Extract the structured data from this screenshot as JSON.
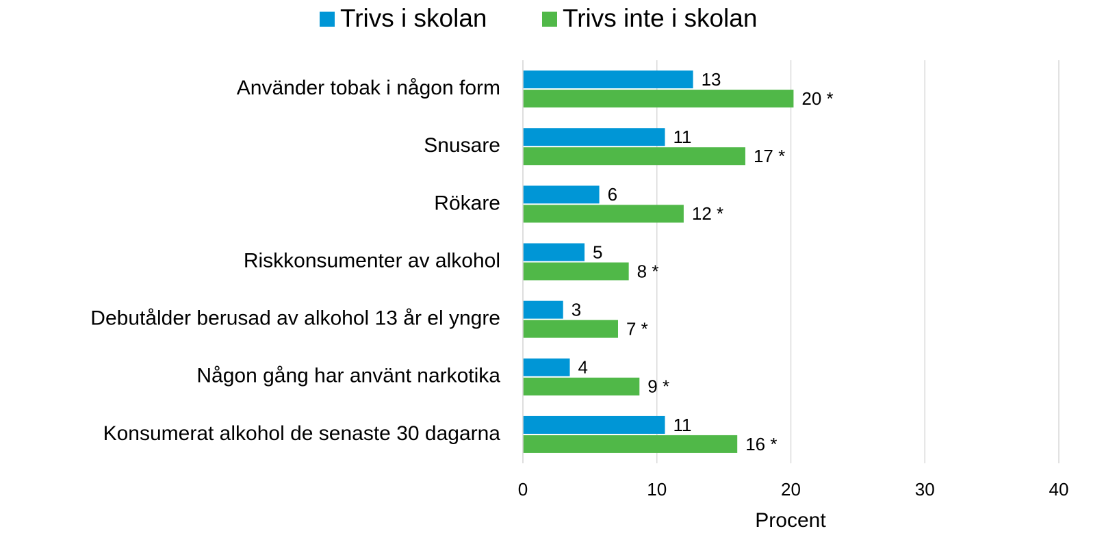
{
  "chart_data": {
    "type": "hbar",
    "categories": [
      "Använder tobak i någon form",
      "Snusare",
      "Rökare",
      "Riskkonsumenter av alkohol",
      "Debutålder berusad av alkohol 13 år el yngre",
      "Någon gång har använt narkotika",
      "Konsumerat alkohol de senaste 30 dagarna"
    ],
    "series": [
      {
        "name": "Trivs i skolan",
        "color": "#0096d6",
        "values": [
          12.7,
          10.6,
          5.7,
          4.6,
          3.0,
          3.5,
          10.6
        ],
        "value_labels": [
          "13",
          "11",
          "6",
          "5",
          "3",
          "4",
          "11"
        ]
      },
      {
        "name": "Trivs inte i skolan",
        "color": "#50b848",
        "values": [
          20.2,
          16.6,
          12.0,
          7.9,
          7.1,
          8.7,
          16.0
        ],
        "value_labels": [
          "20 *",
          "17 *",
          "12 *",
          "8 *",
          "7 *",
          "9 *",
          "16 *"
        ]
      }
    ],
    "xlabel": "Procent",
    "xlim": [
      0,
      40
    ],
    "xticks": [
      0,
      10,
      20,
      30,
      40
    ],
    "grid": true,
    "legend": "top"
  }
}
